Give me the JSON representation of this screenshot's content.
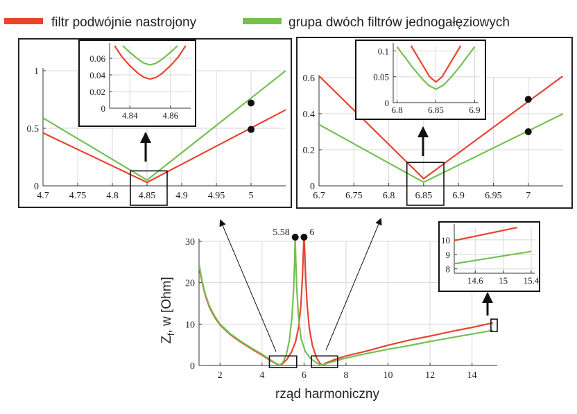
{
  "legend": {
    "red_label": "filtr podwójnie nastrojony",
    "green_label": "grupa dwóch filtrów jednogałęziowych"
  },
  "colors": {
    "red": "#e8432f",
    "green": "#74c052"
  },
  "chart_data": [
    {
      "id": "main",
      "type": "line",
      "xlabel": "rząd harmoniczny",
      "ylabel": "Zf, w [Ohm]",
      "ylabel_main": "Z",
      "ylabel_sub": "f",
      "ylabel_rest": ", w [Ohm]",
      "xlim": [
        1,
        15.2
      ],
      "ylim": [
        0,
        30
      ],
      "xticks": [
        2,
        4,
        6,
        8,
        10,
        12,
        14
      ],
      "yticks": [
        0,
        10,
        20,
        30
      ],
      "annotations": [
        {
          "label": "5.58",
          "x": 5.58,
          "y": 31
        },
        {
          "label": "6",
          "x": 6.0,
          "y": 31
        }
      ],
      "zoom_windows": [
        {
          "x": [
            4.35,
            5.65
          ],
          "y": [
            -0.5,
            2.3
          ]
        },
        {
          "x": [
            6.35,
            7.6
          ],
          "y": [
            -0.5,
            2.3
          ]
        },
        {
          "x": [
            14.9,
            15.2
          ],
          "y": [
            8.2,
            11.2
          ]
        }
      ],
      "series": [
        {
          "name": "filtr podwójnie nastrojony",
          "color": "red",
          "points": [
            [
              1.0,
              24.0
            ],
            [
              1.15,
              20.0
            ],
            [
              1.3,
              16.9
            ],
            [
              1.5,
              14.0
            ],
            [
              1.75,
              11.6
            ],
            [
              2.0,
              9.8
            ],
            [
              2.5,
              7.4
            ],
            [
              3.0,
              5.6
            ],
            [
              3.5,
              4.0
            ],
            [
              4.0,
              2.5
            ],
            [
              4.3,
              1.5
            ],
            [
              4.6,
              0.6
            ],
            [
              4.85,
              0.03
            ],
            [
              5.0,
              0.5
            ],
            [
              5.2,
              1.6
            ],
            [
              5.4,
              3.2
            ],
            [
              5.6,
              5.8
            ],
            [
              5.75,
              9.5
            ],
            [
              5.85,
              14.5
            ],
            [
              5.92,
              21.0
            ],
            [
              5.97,
              28.0
            ],
            [
              6.0,
              31.0
            ],
            [
              6.03,
              28.0
            ],
            [
              6.08,
              21.0
            ],
            [
              6.15,
              14.5
            ],
            [
              6.25,
              9.0
            ],
            [
              6.4,
              4.8
            ],
            [
              6.6,
              1.8
            ],
            [
              6.75,
              0.6
            ],
            [
              6.85,
              0.04
            ],
            [
              7.0,
              0.5
            ],
            [
              7.5,
              1.5
            ],
            [
              8.0,
              2.3
            ],
            [
              9.0,
              3.5
            ],
            [
              10.0,
              4.9
            ],
            [
              11.0,
              6.1
            ],
            [
              12.0,
              7.1
            ],
            [
              13.0,
              8.2
            ],
            [
              14.0,
              9.2
            ],
            [
              15.0,
              10.3
            ]
          ]
        },
        {
          "name": "grupa dwóch filtrów jednogałęziowych",
          "color": "green",
          "points": [
            [
              1.0,
              24.5
            ],
            [
              1.15,
              20.3
            ],
            [
              1.3,
              17.2
            ],
            [
              1.5,
              14.3
            ],
            [
              1.75,
              11.9
            ],
            [
              2.0,
              10.0
            ],
            [
              2.5,
              7.6
            ],
            [
              3.0,
              5.8
            ],
            [
              3.5,
              4.2
            ],
            [
              4.0,
              2.7
            ],
            [
              4.3,
              1.7
            ],
            [
              4.6,
              0.7
            ],
            [
              4.85,
              0.05
            ],
            [
              5.0,
              0.8
            ],
            [
              5.15,
              2.5
            ],
            [
              5.3,
              6.0
            ],
            [
              5.42,
              11.5
            ],
            [
              5.5,
              18.0
            ],
            [
              5.55,
              25.0
            ],
            [
              5.58,
              31.0
            ],
            [
              5.61,
              25.0
            ],
            [
              5.66,
              18.0
            ],
            [
              5.74,
              11.5
            ],
            [
              5.86,
              6.5
            ],
            [
              6.05,
              3.5
            ],
            [
              6.3,
              1.7
            ],
            [
              6.6,
              0.6
            ],
            [
              6.85,
              0.02
            ],
            [
              7.0,
              0.35
            ],
            [
              7.5,
              1.1
            ],
            [
              8.0,
              1.8
            ],
            [
              9.0,
              2.9
            ],
            [
              10.0,
              3.9
            ],
            [
              11.0,
              4.8
            ],
            [
              12.0,
              5.8
            ],
            [
              13.0,
              6.7
            ],
            [
              14.0,
              7.6
            ],
            [
              15.0,
              8.5
            ]
          ]
        }
      ]
    },
    {
      "id": "zoom-left",
      "type": "line",
      "xlim": [
        4.7,
        5.05
      ],
      "ylim": [
        0,
        1
      ],
      "xticks": [
        4.7,
        4.75,
        4.8,
        4.85,
        4.9,
        4.95,
        5
      ],
      "xtick_labels": [
        "4.7",
        "4.75",
        "4.8",
        "4.85",
        "4.9",
        "4.95",
        "5"
      ],
      "yticks": [
        0,
        0.5,
        1
      ],
      "ytick_labels": [
        "0",
        "0.5",
        "1"
      ],
      "highlight": {
        "x": [
          4.826,
          4.879
        ],
        "y": [
          0,
          0.13
        ]
      },
      "markers": [
        {
          "series": "red",
          "x": 5.0,
          "y": 0.49
        },
        {
          "series": "green",
          "x": 5.0,
          "y": 0.72
        }
      ],
      "series": [
        {
          "name": "filtr podwójnie nastrojony",
          "color": "red",
          "points": [
            [
              4.7,
              0.46
            ],
            [
              4.85,
              0.03
            ],
            [
              5.05,
              0.66
            ]
          ]
        },
        {
          "name": "grupa dwóch filtrów jednogałęziowych",
          "color": "green",
          "points": [
            [
              4.7,
              0.59
            ],
            [
              4.85,
              0.05
            ],
            [
              5.05,
              1.0
            ]
          ]
        }
      ]
    },
    {
      "id": "inset-left",
      "type": "line",
      "xlim": [
        4.83,
        4.87
      ],
      "ylim": [
        0,
        0.075
      ],
      "xticks": [
        4.84,
        4.86
      ],
      "xtick_labels": [
        "4.84",
        "4.86"
      ],
      "yticks": [
        0,
        0.02,
        0.04,
        0.06
      ],
      "ytick_labels": [
        "0",
        "0.02",
        "0.04",
        "0.06"
      ],
      "series": [
        {
          "name": "filtr podwójnie nastrojony",
          "color": "red",
          "points": [
            [
              4.8325,
              0.075
            ],
            [
              4.836,
              0.062
            ],
            [
              4.84,
              0.051
            ],
            [
              4.844,
              0.042
            ],
            [
              4.847,
              0.037
            ],
            [
              4.85,
              0.035
            ],
            [
              4.853,
              0.037
            ],
            [
              4.856,
              0.042
            ],
            [
              4.86,
              0.051
            ],
            [
              4.864,
              0.062
            ],
            [
              4.8675,
              0.075
            ]
          ]
        },
        {
          "name": "grupa dwóch filtrów jednogałęziowych",
          "color": "green",
          "points": [
            [
              4.8365,
              0.075
            ],
            [
              4.84,
              0.067
            ],
            [
              4.844,
              0.059
            ],
            [
              4.847,
              0.054
            ],
            [
              4.85,
              0.052
            ],
            [
              4.853,
              0.054
            ],
            [
              4.856,
              0.059
            ],
            [
              4.86,
              0.067
            ],
            [
              4.8635,
              0.075
            ]
          ]
        }
      ]
    },
    {
      "id": "zoom-right",
      "type": "line",
      "xlim": [
        6.7,
        7.05
      ],
      "ylim": [
        0,
        0.6
      ],
      "xticks": [
        6.7,
        6.75,
        6.8,
        6.85,
        6.9,
        6.95,
        7
      ],
      "xtick_labels": [
        "6.7",
        "6.75",
        "6.8",
        "6.85",
        "6.9",
        "6.95",
        "7"
      ],
      "yticks": [
        0,
        0.2,
        0.4,
        0.6
      ],
      "ytick_labels": [
        "0",
        "0.2",
        "0.4",
        "0.6"
      ],
      "highlight": {
        "x": [
          6.826,
          6.879
        ],
        "y": [
          0,
          0.13
        ]
      },
      "markers": [
        {
          "series": "red",
          "x": 7.0,
          "y": 0.48
        },
        {
          "series": "green",
          "x": 7.0,
          "y": 0.3
        }
      ],
      "series": [
        {
          "name": "filtr podwójnie nastrojony",
          "color": "red",
          "points": [
            [
              6.7,
              0.61
            ],
            [
              6.85,
              0.04
            ],
            [
              7.05,
              0.61
            ]
          ]
        },
        {
          "name": "grupa dwóch filtrów jednogałęziowych",
          "color": "green",
          "points": [
            [
              6.7,
              0.34
            ],
            [
              6.85,
              0.02
            ],
            [
              7.05,
              0.4
            ]
          ]
        }
      ]
    },
    {
      "id": "inset-right",
      "type": "line",
      "xlim": [
        6.795,
        6.905
      ],
      "ylim": [
        0,
        0.11
      ],
      "xticks": [
        6.8,
        6.85,
        6.9
      ],
      "xtick_labels": [
        "6.8",
        "6.85",
        "6.9"
      ],
      "yticks": [
        0,
        0.05,
        0.1
      ],
      "ytick_labels": [
        "0",
        "0.05",
        "0.1"
      ],
      "series": [
        {
          "name": "filtr podwójnie nastrojony",
          "color": "red",
          "points": [
            [
              6.818,
              0.11
            ],
            [
              6.826,
              0.09
            ],
            [
              6.834,
              0.07
            ],
            [
              6.842,
              0.05
            ],
            [
              6.85,
              0.04
            ],
            [
              6.858,
              0.05
            ],
            [
              6.866,
              0.07
            ],
            [
              6.874,
              0.09
            ],
            [
              6.882,
              0.11
            ]
          ]
        },
        {
          "name": "grupa dwóch filtrów jednogałęziowych",
          "color": "green",
          "points": [
            [
              6.8,
              0.108
            ],
            [
              6.81,
              0.088
            ],
            [
              6.82,
              0.068
            ],
            [
              6.83,
              0.05
            ],
            [
              6.84,
              0.034
            ],
            [
              6.85,
              0.026
            ],
            [
              6.86,
              0.034
            ],
            [
              6.87,
              0.05
            ],
            [
              6.88,
              0.068
            ],
            [
              6.89,
              0.088
            ],
            [
              6.9,
              0.108
            ]
          ]
        }
      ]
    },
    {
      "id": "inset-high",
      "type": "line",
      "xlim": [
        14.3,
        15.45
      ],
      "ylim": [
        7.7,
        10.9
      ],
      "xticks": [
        14.6,
        15,
        15.4
      ],
      "xtick_labels": [
        "14.6",
        "15",
        "15.4"
      ],
      "yticks": [
        8,
        9,
        10
      ],
      "ytick_labels": [
        "8",
        "9",
        "10"
      ],
      "series": [
        {
          "name": "filtr podwójnie nastrojony",
          "color": "red",
          "points": [
            [
              14.3,
              9.95
            ],
            [
              15.2,
              10.85
            ]
          ]
        },
        {
          "name": "grupa dwóch filtrów jednogałęziowych",
          "color": "green",
          "points": [
            [
              14.3,
              8.35
            ],
            [
              15.4,
              9.2
            ]
          ]
        }
      ]
    }
  ]
}
